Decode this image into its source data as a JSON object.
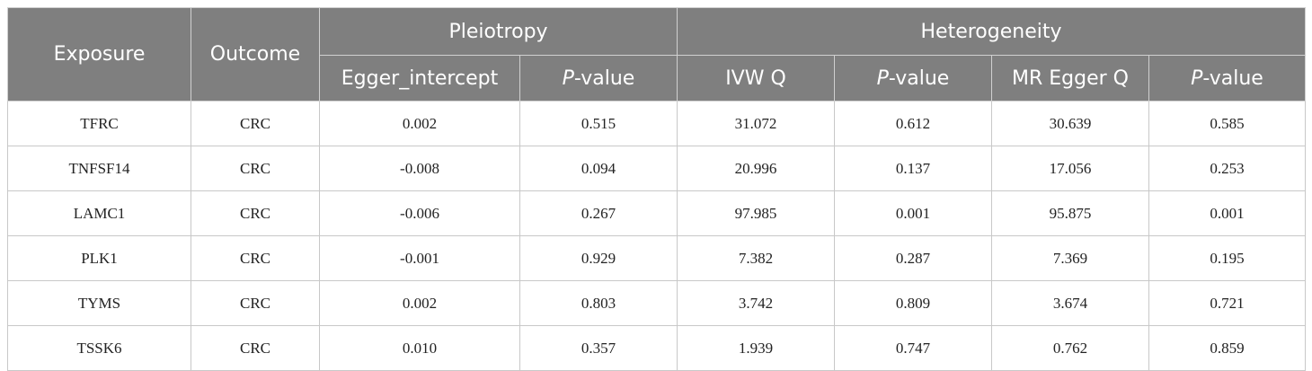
{
  "table": {
    "headers": {
      "exposure": "Exposure",
      "outcome": "Outcome",
      "pleiotropy": "Pleiotropy",
      "heterogeneity": "Heterogeneity",
      "sub": [
        {
          "text": "Egger_intercept"
        },
        {
          "italic": "P",
          "rest": "-value"
        },
        {
          "text": "IVW Q"
        },
        {
          "italic": "P",
          "rest": "-value"
        },
        {
          "text": "MR Egger Q"
        },
        {
          "italic": "P",
          "rest": "-value"
        }
      ]
    },
    "rows": [
      [
        "TFRC",
        "CRC",
        "0.002",
        "0.515",
        "31.072",
        "0.612",
        "30.639",
        "0.585"
      ],
      [
        "TNFSF14",
        "CRC",
        "-0.008",
        "0.094",
        "20.996",
        "0.137",
        "17.056",
        "0.253"
      ],
      [
        "LAMC1",
        "CRC",
        "-0.006",
        "0.267",
        "97.985",
        "0.001",
        "95.875",
        "0.001"
      ],
      [
        "PLK1",
        "CRC",
        "-0.001",
        "0.929",
        "7.382",
        "0.287",
        "7.369",
        "0.195"
      ],
      [
        "TYMS",
        "CRC",
        "0.002",
        "0.803",
        "3.742",
        "0.809",
        "3.674",
        "0.721"
      ],
      [
        "TSSK6",
        "CRC",
        "0.010",
        "0.357",
        "1.939",
        "0.747",
        "0.762",
        "0.859"
      ]
    ]
  }
}
